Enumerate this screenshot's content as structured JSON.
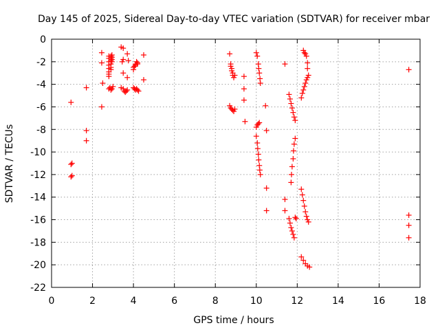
{
  "chart_data": {
    "type": "scatter",
    "title": "Day 145 of 2025, Sidereal Day-to-day VTEC variation (SDTVAR) for receiver mbar",
    "xlabel": "GPS time / hours",
    "ylabel": "SDTVAR / TECUs",
    "xlim": [
      0,
      18
    ],
    "ylim": [
      -22,
      0
    ],
    "xticks": [
      0,
      2,
      4,
      6,
      8,
      10,
      12,
      14,
      16,
      18
    ],
    "yticks": [
      0,
      -2,
      -4,
      -6,
      -8,
      -10,
      -12,
      -14,
      -16,
      -18,
      -20,
      -22
    ],
    "grid": true,
    "marker": "+",
    "color": "#ff0000",
    "series": [
      {
        "name": "SDTVAR",
        "points": [
          [
            0.95,
            -5.6
          ],
          [
            0.95,
            -11.1
          ],
          [
            0.95,
            -12.2
          ],
          [
            1.0,
            -11.0
          ],
          [
            1.0,
            -12.1
          ],
          [
            1.7,
            -4.3
          ],
          [
            1.7,
            -8.1
          ],
          [
            1.7,
            -9.0
          ],
          [
            2.45,
            -1.2
          ],
          [
            2.45,
            -2.1
          ],
          [
            2.5,
            -3.9
          ],
          [
            2.45,
            -6.0
          ],
          [
            2.8,
            -1.5
          ],
          [
            2.8,
            -1.7
          ],
          [
            2.8,
            -2.0
          ],
          [
            2.8,
            -2.3
          ],
          [
            2.8,
            -2.6
          ],
          [
            2.8,
            -2.9
          ],
          [
            2.8,
            -3.1
          ],
          [
            2.8,
            -3.3
          ],
          [
            2.9,
            -1.5
          ],
          [
            2.9,
            -1.7
          ],
          [
            2.9,
            -1.9
          ],
          [
            2.9,
            -2.2
          ],
          [
            2.9,
            -2.5
          ],
          [
            2.9,
            -2.7
          ],
          [
            2.95,
            -1.4
          ],
          [
            2.95,
            -1.6
          ],
          [
            2.95,
            -1.8
          ],
          [
            2.95,
            -2.0
          ],
          [
            2.8,
            -4.4
          ],
          [
            2.85,
            -4.3
          ],
          [
            2.9,
            -4.5
          ],
          [
            2.95,
            -4.4
          ],
          [
            3.0,
            -4.2
          ],
          [
            3.4,
            -0.7
          ],
          [
            3.5,
            -0.8
          ],
          [
            3.5,
            -1.8
          ],
          [
            3.45,
            -2.0
          ],
          [
            3.5,
            -3.0
          ],
          [
            3.4,
            -4.3
          ],
          [
            3.5,
            -4.4
          ],
          [
            3.55,
            -4.6
          ],
          [
            3.6,
            -4.7
          ],
          [
            3.65,
            -4.6
          ],
          [
            3.7,
            -4.5
          ],
          [
            3.7,
            -1.3
          ],
          [
            3.75,
            -1.9
          ],
          [
            3.7,
            -3.4
          ],
          [
            4.0,
            -2.5
          ],
          [
            4.0,
            -2.7
          ],
          [
            4.05,
            -2.4
          ],
          [
            4.1,
            -2.3
          ],
          [
            4.1,
            -2.2
          ],
          [
            4.15,
            -2.0
          ],
          [
            4.2,
            -2.1
          ],
          [
            4.2,
            -2.2
          ],
          [
            4.0,
            -4.3
          ],
          [
            4.05,
            -4.4
          ],
          [
            4.1,
            -4.5
          ],
          [
            4.15,
            -4.4
          ],
          [
            4.2,
            -4.5
          ],
          [
            4.25,
            -4.6
          ],
          [
            4.5,
            -1.4
          ],
          [
            4.5,
            -3.6
          ],
          [
            8.7,
            -1.3
          ],
          [
            8.75,
            -2.2
          ],
          [
            8.75,
            -2.4
          ],
          [
            8.8,
            -2.6
          ],
          [
            8.8,
            -2.8
          ],
          [
            8.85,
            -3.0
          ],
          [
            8.85,
            -3.2
          ],
          [
            8.9,
            -3.4
          ],
          [
            8.95,
            -3.2
          ],
          [
            8.7,
            -5.9
          ],
          [
            8.75,
            -6.1
          ],
          [
            8.8,
            -6.2
          ],
          [
            8.85,
            -6.3
          ],
          [
            8.9,
            -6.4
          ],
          [
            8.95,
            -6.2
          ],
          [
            9.4,
            -3.3
          ],
          [
            9.4,
            -4.4
          ],
          [
            9.4,
            -5.4
          ],
          [
            9.45,
            -7.3
          ],
          [
            10.0,
            -1.2
          ],
          [
            10.05,
            -1.5
          ],
          [
            10.1,
            -2.2
          ],
          [
            10.12,
            -2.6
          ],
          [
            10.15,
            -3.0
          ],
          [
            10.18,
            -3.5
          ],
          [
            10.2,
            -3.9
          ],
          [
            10.0,
            -7.8
          ],
          [
            10.05,
            -7.6
          ],
          [
            10.1,
            -7.5
          ],
          [
            10.15,
            -7.4
          ],
          [
            10.0,
            -8.6
          ],
          [
            10.05,
            -9.2
          ],
          [
            10.07,
            -9.7
          ],
          [
            10.1,
            -10.2
          ],
          [
            10.12,
            -10.7
          ],
          [
            10.15,
            -11.2
          ],
          [
            10.17,
            -11.6
          ],
          [
            10.2,
            -12.0
          ],
          [
            10.45,
            -5.9
          ],
          [
            10.5,
            -8.1
          ],
          [
            10.5,
            -13.2
          ],
          [
            10.5,
            -15.2
          ],
          [
            11.4,
            -2.2
          ],
          [
            11.4,
            -14.2
          ],
          [
            11.4,
            -15.2
          ],
          [
            11.6,
            -4.9
          ],
          [
            11.65,
            -5.3
          ],
          [
            11.7,
            -5.7
          ],
          [
            11.75,
            -6.1
          ],
          [
            11.8,
            -6.5
          ],
          [
            11.85,
            -6.9
          ],
          [
            11.9,
            -7.2
          ],
          [
            11.7,
            -12.7
          ],
          [
            11.72,
            -12.0
          ],
          [
            11.75,
            -11.3
          ],
          [
            11.8,
            -10.6
          ],
          [
            11.82,
            -9.9
          ],
          [
            11.85,
            -9.3
          ],
          [
            11.9,
            -8.8
          ],
          [
            11.6,
            -15.9
          ],
          [
            11.65,
            -16.3
          ],
          [
            11.7,
            -16.7
          ],
          [
            11.75,
            -17.0
          ],
          [
            11.8,
            -17.3
          ],
          [
            11.85,
            -17.6
          ],
          [
            11.9,
            -15.8
          ],
          [
            11.95,
            -15.9
          ],
          [
            12.3,
            -1.0
          ],
          [
            12.35,
            -1.2
          ],
          [
            12.4,
            -1.3
          ],
          [
            12.45,
            -1.5
          ],
          [
            12.2,
            -5.2
          ],
          [
            12.25,
            -4.8
          ],
          [
            12.3,
            -4.5
          ],
          [
            12.35,
            -4.2
          ],
          [
            12.4,
            -3.9
          ],
          [
            12.45,
            -3.6
          ],
          [
            12.5,
            -3.4
          ],
          [
            12.55,
            -3.2
          ],
          [
            12.5,
            -2.6
          ],
          [
            12.5,
            -2.1
          ],
          [
            12.2,
            -13.3
          ],
          [
            12.25,
            -13.8
          ],
          [
            12.3,
            -14.3
          ],
          [
            12.35,
            -14.8
          ],
          [
            12.4,
            -15.3
          ],
          [
            12.45,
            -15.7
          ],
          [
            12.5,
            -16.0
          ],
          [
            12.55,
            -16.2
          ],
          [
            12.2,
            -19.3
          ],
          [
            12.3,
            -19.6
          ],
          [
            12.4,
            -19.9
          ],
          [
            12.5,
            -20.1
          ],
          [
            12.6,
            -20.2
          ],
          [
            17.45,
            -2.7
          ],
          [
            17.45,
            -15.6
          ],
          [
            17.45,
            -16.5
          ],
          [
            17.45,
            -17.6
          ]
        ]
      }
    ]
  }
}
